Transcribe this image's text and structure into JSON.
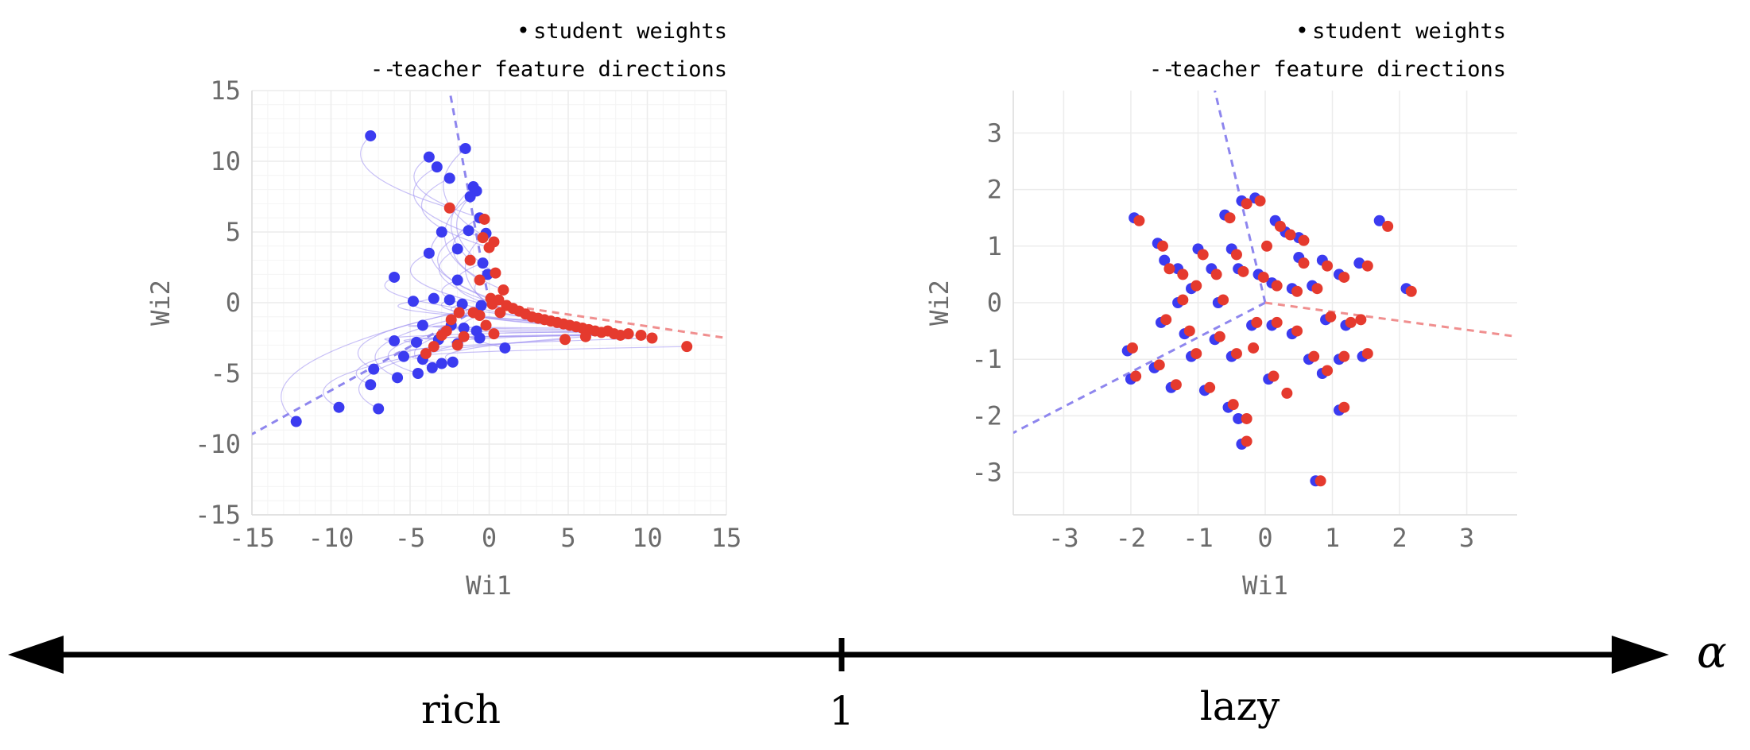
{
  "colors": {
    "initial": "#3b3bf0",
    "final": "#e53a2e",
    "teacher_blue": "#8e86ee",
    "teacher_red": "#f08f8f",
    "trajectory": "#9a8cf0",
    "grid": "#ececec",
    "axis_text": "#6b6b6b"
  },
  "legend": {
    "student_marker": "•",
    "student_label": "student weights",
    "teacher_marker": "--",
    "teacher_label": "teacher feature directions"
  },
  "chart_data": [
    {
      "type": "scatter",
      "title": "",
      "xlabel": "Wi1",
      "ylabel": "Wi2",
      "xlim": [
        -15,
        15
      ],
      "ylim": [
        -15,
        15
      ],
      "xticks": [
        -15,
        -10,
        -5,
        0,
        5,
        10,
        15
      ],
      "yticks": [
        -15,
        -10,
        -5,
        0,
        5,
        10,
        15
      ],
      "xtick_labels": [
        "-15",
        "-10",
        "-5",
        "0",
        "5",
        "10",
        "15"
      ],
      "ytick_labels": [
        "-15",
        "-10",
        "-5",
        "0",
        "5",
        "10",
        "15"
      ],
      "grid": true,
      "grid_minor": true,
      "legend_position": "top-right",
      "teacher_directions": [
        {
          "color": "blue",
          "from": [
            0,
            0
          ],
          "to": [
            -2.5,
            15
          ]
        },
        {
          "color": "blue",
          "from": [
            0,
            0
          ],
          "to": [
            -15,
            -9.3
          ]
        },
        {
          "color": "red",
          "from": [
            0,
            0
          ],
          "to": [
            15,
            -2.5
          ]
        }
      ],
      "series": [
        {
          "name": "initial",
          "points": [
            [
              -7.5,
              11.8
            ],
            [
              -3.8,
              10.3
            ],
            [
              -1.5,
              10.9
            ],
            [
              -3.3,
              9.6
            ],
            [
              -2.5,
              8.8
            ],
            [
              -1.0,
              8.2
            ],
            [
              -0.8,
              7.9
            ],
            [
              -1.2,
              7.5
            ],
            [
              -0.6,
              6.0
            ],
            [
              -1.3,
              5.1
            ],
            [
              -3.0,
              5.0
            ],
            [
              -0.2,
              4.9
            ],
            [
              -2.0,
              3.8
            ],
            [
              -3.8,
              3.5
            ],
            [
              -0.4,
              2.8
            ],
            [
              -0.1,
              2.0
            ],
            [
              -6.0,
              1.8
            ],
            [
              -2.0,
              1.6
            ],
            [
              -4.8,
              0.1
            ],
            [
              -3.5,
              0.3
            ],
            [
              -2.5,
              0.2
            ],
            [
              -1.7,
              -0.1
            ],
            [
              -0.5,
              -0.2
            ],
            [
              -4.2,
              -1.6
            ],
            [
              -2.4,
              -1.6
            ],
            [
              -1.6,
              -1.8
            ],
            [
              -0.8,
              -2.0
            ],
            [
              -6.0,
              -2.7
            ],
            [
              -4.6,
              -2.8
            ],
            [
              -3.2,
              -2.6
            ],
            [
              -2.0,
              -2.9
            ],
            [
              -0.6,
              -2.5
            ],
            [
              -5.4,
              -3.8
            ],
            [
              -4.2,
              -4.0
            ],
            [
              -3.0,
              -4.3
            ],
            [
              -2.3,
              -4.2
            ],
            [
              1.0,
              -3.2
            ],
            [
              -7.3,
              -4.7
            ],
            [
              -5.8,
              -5.3
            ],
            [
              -4.5,
              -5.0
            ],
            [
              -3.6,
              -4.6
            ],
            [
              -7.5,
              -5.8
            ],
            [
              -9.5,
              -7.4
            ],
            [
              -7.0,
              -7.5
            ],
            [
              -12.2,
              -8.4
            ]
          ]
        },
        {
          "name": "final",
          "points": [
            [
              -2.5,
              6.7
            ],
            [
              -0.3,
              5.9
            ],
            [
              0.3,
              4.3
            ],
            [
              -0.4,
              4.6
            ],
            [
              0.0,
              3.9
            ],
            [
              -1.2,
              3.0
            ],
            [
              0.4,
              2.1
            ],
            [
              -0.6,
              1.6
            ],
            [
              0.9,
              0.9
            ],
            [
              0.1,
              0.3
            ],
            [
              1.1,
              -0.2
            ],
            [
              0.7,
              -0.7
            ],
            [
              1.5,
              -0.4
            ],
            [
              1.9,
              -0.6
            ],
            [
              2.3,
              -0.8
            ],
            [
              2.7,
              -1.0
            ],
            [
              3.1,
              -1.1
            ],
            [
              3.5,
              -1.2
            ],
            [
              3.9,
              -1.3
            ],
            [
              4.3,
              -1.4
            ],
            [
              4.7,
              -1.5
            ],
            [
              5.1,
              -1.6
            ],
            [
              5.5,
              -1.7
            ],
            [
              5.9,
              -1.8
            ],
            [
              6.3,
              -1.9
            ],
            [
              6.7,
              -2.0
            ],
            [
              7.1,
              -2.1
            ],
            [
              7.5,
              -2.0
            ],
            [
              7.9,
              -2.2
            ],
            [
              8.3,
              -2.3
            ],
            [
              8.8,
              -2.2
            ],
            [
              9.6,
              -2.3
            ],
            [
              10.3,
              -2.5
            ],
            [
              12.5,
              -3.1
            ],
            [
              4.8,
              -2.6
            ],
            [
              6.1,
              -2.4
            ],
            [
              -0.6,
              -0.9
            ],
            [
              -1.9,
              -0.7
            ],
            [
              -2.4,
              -1.2
            ],
            [
              -2.7,
              -2.0
            ],
            [
              -3.0,
              -2.3
            ],
            [
              -3.5,
              -3.1
            ],
            [
              -4.0,
              -3.6
            ],
            [
              -2.0,
              -3.0
            ],
            [
              0.2,
              -0.1
            ],
            [
              0.6,
              0.2
            ],
            [
              -0.2,
              -1.6
            ],
            [
              -1.0,
              -0.7
            ],
            [
              0.3,
              -2.2
            ],
            [
              -1.6,
              -2.4
            ]
          ]
        }
      ]
    },
    {
      "type": "scatter",
      "title": "",
      "xlabel": "Wi1",
      "ylabel": "Wi2",
      "xlim": [
        -3.75,
        3.75
      ],
      "ylim": [
        -3.75,
        3.75
      ],
      "xticks": [
        -3,
        -2,
        -1,
        0,
        1,
        2,
        3
      ],
      "yticks": [
        -3,
        -2,
        -1,
        0,
        1,
        2,
        3
      ],
      "xtick_labels": [
        "-3",
        "-2",
        "-1",
        "0",
        "1",
        "2",
        "3"
      ],
      "ytick_labels": [
        "-3",
        "-2",
        "-1",
        "0",
        "1",
        "2",
        "3"
      ],
      "grid": true,
      "grid_minor": false,
      "legend_position": "top-right",
      "teacher_directions": [
        {
          "color": "blue",
          "from": [
            0,
            0
          ],
          "to": [
            -0.75,
            3.75
          ]
        },
        {
          "color": "blue",
          "from": [
            0,
            0
          ],
          "to": [
            -3.75,
            -2.3
          ]
        },
        {
          "color": "red",
          "from": [
            0,
            0
          ],
          "to": [
            3.75,
            -0.6
          ]
        }
      ],
      "series": [
        {
          "name": "initial",
          "points": [
            [
              -1.95,
              1.5
            ],
            [
              -1.6,
              1.05
            ],
            [
              -1.5,
              0.75
            ],
            [
              -0.35,
              1.8
            ],
            [
              -0.15,
              1.85
            ],
            [
              -0.6,
              1.55
            ],
            [
              0.15,
              1.45
            ],
            [
              0.3,
              1.25
            ],
            [
              0.5,
              1.15
            ],
            [
              1.7,
              1.45
            ],
            [
              -1.0,
              0.95
            ],
            [
              -0.5,
              0.95
            ],
            [
              -1.3,
              0.6
            ],
            [
              -0.8,
              0.6
            ],
            [
              -0.4,
              0.6
            ],
            [
              0.5,
              0.8
            ],
            [
              0.85,
              0.75
            ],
            [
              1.4,
              0.7
            ],
            [
              -1.3,
              0.0
            ],
            [
              -1.1,
              0.25
            ],
            [
              -0.7,
              0.0
            ],
            [
              -0.1,
              0.5
            ],
            [
              0.1,
              0.35
            ],
            [
              0.4,
              0.25
            ],
            [
              0.7,
              0.3
            ],
            [
              1.1,
              0.5
            ],
            [
              2.1,
              0.25
            ],
            [
              -1.55,
              -0.35
            ],
            [
              -1.2,
              -0.55
            ],
            [
              -0.75,
              -0.65
            ],
            [
              -0.2,
              -0.4
            ],
            [
              0.1,
              -0.4
            ],
            [
              0.4,
              -0.55
            ],
            [
              0.9,
              -0.3
            ],
            [
              1.2,
              -0.4
            ],
            [
              -2.05,
              -0.85
            ],
            [
              -1.65,
              -1.15
            ],
            [
              -1.1,
              -0.95
            ],
            [
              -0.5,
              -0.95
            ],
            [
              0.05,
              -1.35
            ],
            [
              0.65,
              -1.0
            ],
            [
              1.1,
              -1.0
            ],
            [
              1.45,
              -0.95
            ],
            [
              -2.0,
              -1.35
            ],
            [
              -1.4,
              -1.5
            ],
            [
              -0.9,
              -1.55
            ],
            [
              -0.55,
              -1.85
            ],
            [
              -0.4,
              -2.05
            ],
            [
              -0.35,
              -2.5
            ],
            [
              0.85,
              -1.25
            ],
            [
              1.1,
              -1.9
            ],
            [
              0.75,
              -3.15
            ]
          ]
        },
        {
          "name": "final",
          "points": [
            [
              -1.9,
              1.45
            ],
            [
              -1.55,
              1.0
            ],
            [
              -1.45,
              0.6
            ],
            [
              -0.3,
              1.75
            ],
            [
              -0.1,
              1.8
            ],
            [
              -0.55,
              1.5
            ],
            [
              0.2,
              1.35
            ],
            [
              0.35,
              1.2
            ],
            [
              0.55,
              1.1
            ],
            [
              1.8,
              1.35
            ],
            [
              -0.95,
              0.85
            ],
            [
              -0.45,
              0.85
            ],
            [
              -1.25,
              0.5
            ],
            [
              -0.75,
              0.5
            ],
            [
              -0.35,
              0.55
            ],
            [
              0.55,
              0.7
            ],
            [
              0.9,
              0.65
            ],
            [
              1.5,
              0.65
            ],
            [
              -1.25,
              0.05
            ],
            [
              -1.05,
              0.3
            ],
            [
              -0.65,
              0.05
            ],
            [
              -0.05,
              0.45
            ],
            [
              0.15,
              0.3
            ],
            [
              0.45,
              0.2
            ],
            [
              0.75,
              0.25
            ],
            [
              1.15,
              0.45
            ],
            [
              2.15,
              0.2
            ],
            [
              -1.5,
              -0.3
            ],
            [
              -1.15,
              -0.5
            ],
            [
              -0.7,
              -0.6
            ],
            [
              -0.15,
              -0.35
            ],
            [
              0.15,
              -0.35
            ],
            [
              0.45,
              -0.5
            ],
            [
              0.95,
              -0.25
            ],
            [
              1.25,
              -0.35
            ],
            [
              -2.0,
              -0.8
            ],
            [
              -1.6,
              -1.1
            ],
            [
              -1.05,
              -0.9
            ],
            [
              -0.45,
              -0.9
            ],
            [
              0.1,
              -1.3
            ],
            [
              0.7,
              -0.95
            ],
            [
              1.15,
              -0.95
            ],
            [
              1.5,
              -0.9
            ],
            [
              -1.95,
              -1.3
            ],
            [
              -1.35,
              -1.45
            ],
            [
              -0.85,
              -1.5
            ],
            [
              -0.5,
              -1.8
            ],
            [
              -0.3,
              -2.05
            ],
            [
              -0.3,
              -2.45
            ],
            [
              0.9,
              -1.2
            ],
            [
              1.15,
              -1.85
            ],
            [
              0.8,
              -3.15
            ],
            [
              0.0,
              1.0
            ],
            [
              -0.2,
              -0.8
            ],
            [
              0.3,
              -1.6
            ],
            [
              1.4,
              -0.3
            ]
          ]
        }
      ]
    }
  ],
  "axis": {
    "left_label": "rich",
    "mid_label": "1",
    "right_label": "lazy",
    "alpha_label": "α"
  }
}
